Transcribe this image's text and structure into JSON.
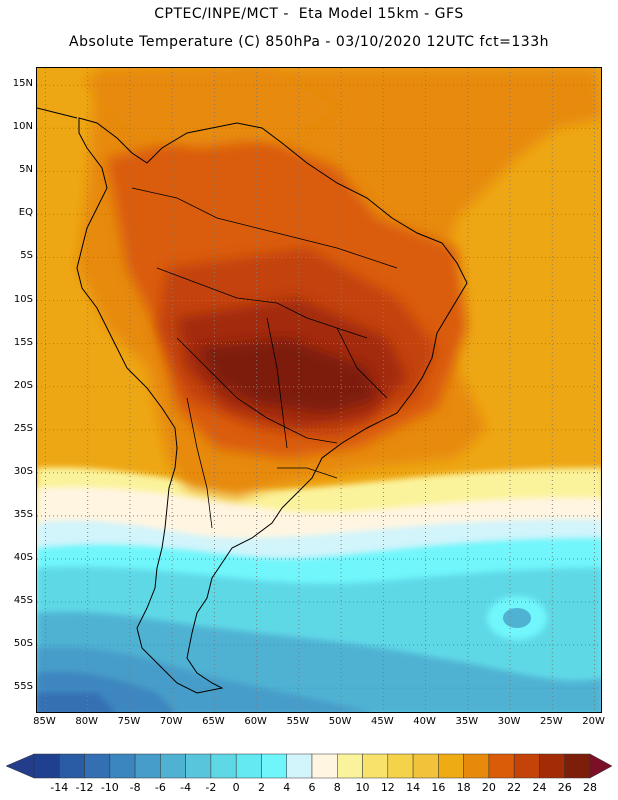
{
  "header": {
    "line1": "CPTEC/INPE/MCT -  Eta Model 15km - GFS",
    "line2": "Absolute Temperature (C) 850hPa - 03/10/2020 12UTC fct=133h"
  },
  "map": {
    "lat_range": [
      -58,
      17
    ],
    "lon_range": [
      -86,
      -19
    ],
    "lat_labels": [
      "15N",
      "10N",
      "5N",
      "EQ",
      "5S",
      "10S",
      "15S",
      "20S",
      "25S",
      "30S",
      "35S",
      "40S",
      "45S",
      "50S",
      "55S"
    ],
    "lon_labels": [
      "85W",
      "80W",
      "75W",
      "70W",
      "65W",
      "60W",
      "55W",
      "50W",
      "45W",
      "40W",
      "35W",
      "30W",
      "25W",
      "20W"
    ]
  },
  "colorbar": {
    "labels": [
      "-14",
      "-12",
      "-10",
      "-8",
      "-6",
      "-4",
      "-2",
      "0",
      "2",
      "4",
      "6",
      "8",
      "10",
      "12",
      "14",
      "16",
      "18",
      "20",
      "22",
      "24",
      "26",
      "28"
    ],
    "colors": [
      "#1f3f8f",
      "#2a5ba5",
      "#346fb3",
      "#3c86bf",
      "#469dc9",
      "#4fb2d3",
      "#58c5dc",
      "#5fd8e6",
      "#63e9f2",
      "#6ff6fb",
      "#d2f4fb",
      "#fff5e1",
      "#fbf39b",
      "#f8e26c",
      "#f4d24a",
      "#f1c23a",
      "#eeab14",
      "#e78a0c",
      "#da5c08",
      "#c34308",
      "#a32c07",
      "#7d1e0a"
    ],
    "low_color": "#233d8b",
    "high_color": "#7a0f28"
  }
}
